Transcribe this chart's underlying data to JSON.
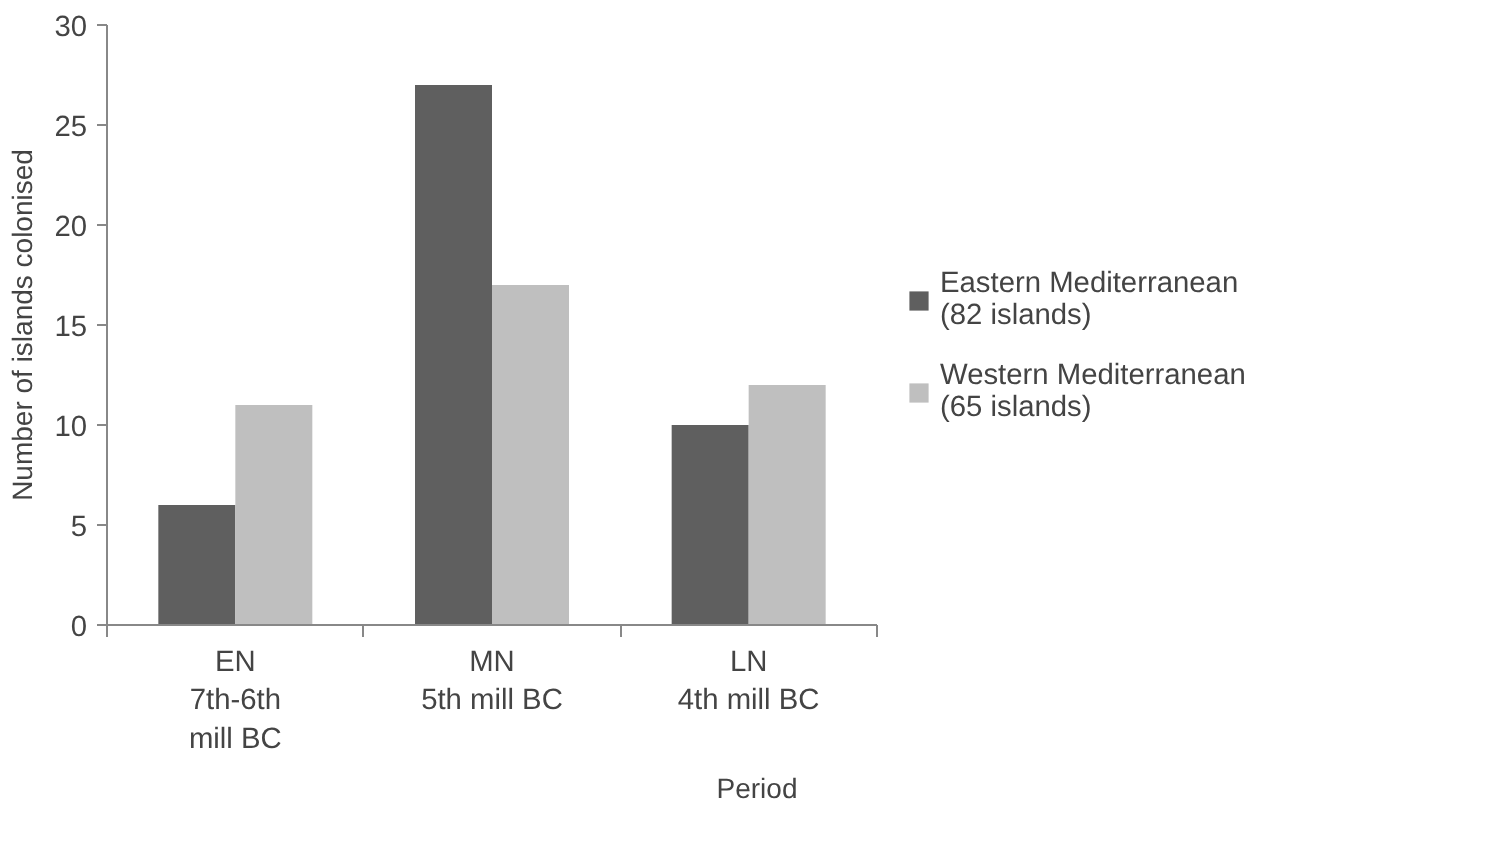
{
  "chart_data": {
    "type": "bar",
    "xlabel": "Period",
    "ylabel": "Number of islands colonised",
    "categories": [
      "EN\n7th-6th\nmill BC",
      "MN\n5th mill BC",
      "LN\n4th mill BC"
    ],
    "series": [
      {
        "name": "Eastern Mediterranean\n(82 islands)",
        "color": "#5f5f5f",
        "values": [
          6,
          27,
          10
        ]
      },
      {
        "name": "Western Mediterranean\n(65 islands)",
        "color": "#bfbfbf",
        "values": [
          11,
          17,
          12
        ]
      }
    ],
    "ylim": [
      0,
      30
    ],
    "yticks": [
      0,
      5,
      10,
      15,
      20,
      25,
      30
    ],
    "grid": false,
    "legend": "right"
  }
}
